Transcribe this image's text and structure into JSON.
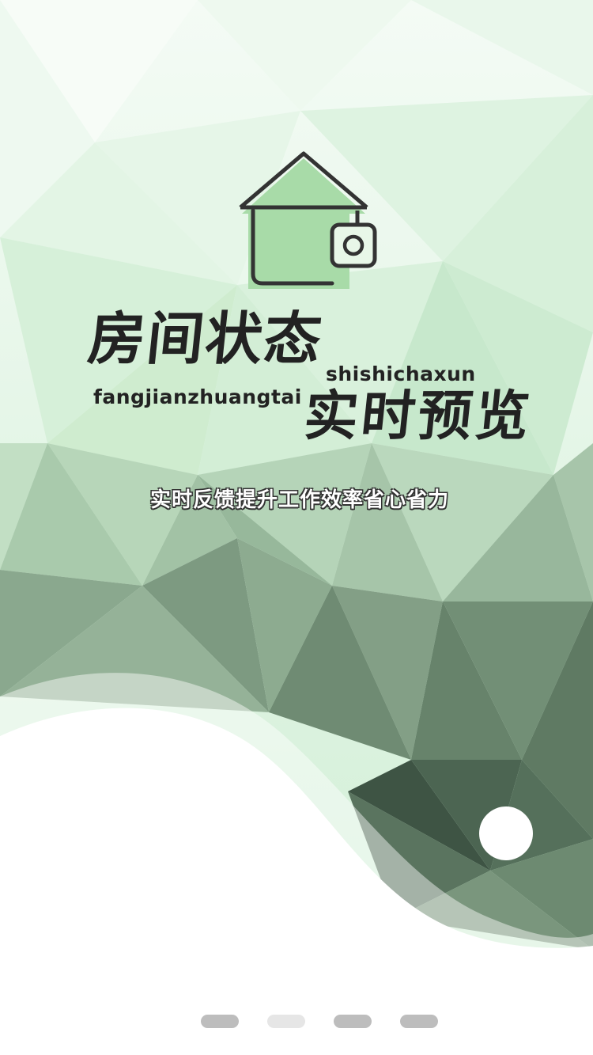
{
  "splash": {
    "title_line1": "房间状态",
    "pinyin_line1": "shishichaxun",
    "pinyin_line2": "fangjianzhuangtai",
    "title_line2": "实时预览",
    "slogan": "实时反馈提升工作效率省心省力"
  },
  "pager": {
    "count": 4,
    "active_index": 1
  },
  "icons": {
    "logo": "house-camera-icon"
  },
  "colors": {
    "light_green": "#d7f3da",
    "mid_green": "#9fbf9f",
    "dark_green": "#3f5a46",
    "logo_fill": "#a8dba8",
    "text_dark": "#222222"
  }
}
